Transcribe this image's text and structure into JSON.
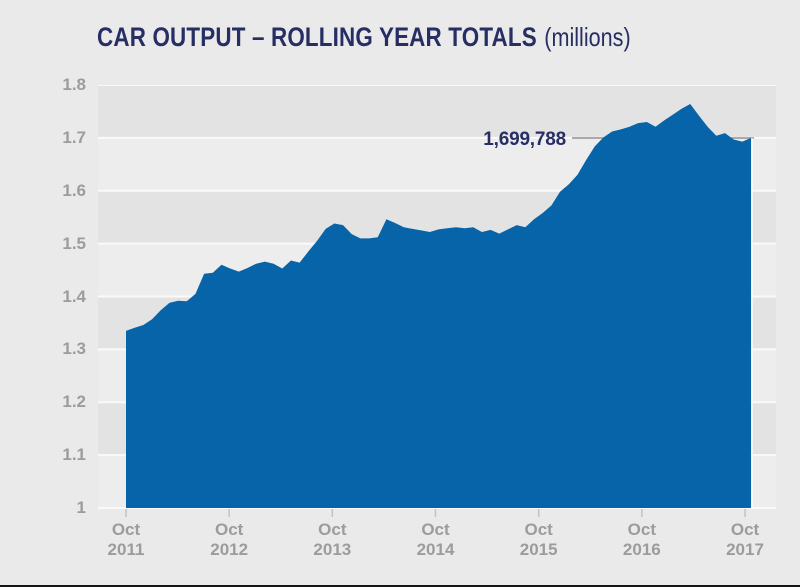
{
  "title": {
    "main": "CAR OUTPUT – ROLLING YEAR TOTALS",
    "suffix": "(millions)"
  },
  "colors": {
    "page_bg": "#eaeaea",
    "band_dark": "#e3e3e3",
    "band_light": "#ededed",
    "gridline": "#fafafa",
    "area_fill": "#0764a8",
    "axis_text": "#9c9c9c",
    "tick_mark": "#c2c2c2",
    "callout_line": "#8f8f8f",
    "title_navy": "#262e63"
  },
  "chart_data": {
    "type": "area",
    "title": "CAR OUTPUT – ROLLING YEAR TOTALS",
    "units": "millions",
    "interval": "monthly rolling year totals, Oct 2011 – Oct 2017",
    "ylim": [
      1.0,
      1.8
    ],
    "grid": "banded background, horizontal gridlines every 0.1",
    "legend": "none",
    "y_tick_labels": [
      "1.8",
      "1.7",
      "1.6",
      "1.5",
      "1.4",
      "1.3",
      "1.2",
      "1.1",
      "1"
    ],
    "x_tick_labels": [
      {
        "line1": "Oct",
        "line2": "2011"
      },
      {
        "line1": "Oct",
        "line2": "2012"
      },
      {
        "line1": "Oct",
        "line2": "2013"
      },
      {
        "line1": "Oct",
        "line2": "2014"
      },
      {
        "line1": "Oct",
        "line2": "2015"
      },
      {
        "line1": "Oct",
        "line2": "2016"
      },
      {
        "line1": "Oct",
        "line2": "2017"
      }
    ],
    "series": [
      {
        "name": "Car output rolling year total (millions)",
        "values": [
          1.335,
          1.341,
          1.346,
          1.357,
          1.374,
          1.388,
          1.392,
          1.391,
          1.405,
          1.443,
          1.445,
          1.46,
          1.453,
          1.447,
          1.454,
          1.462,
          1.466,
          1.462,
          1.453,
          1.468,
          1.464,
          1.485,
          1.505,
          1.528,
          1.538,
          1.535,
          1.518,
          1.51,
          1.51,
          1.512,
          1.546,
          1.539,
          1.531,
          1.528,
          1.525,
          1.522,
          1.527,
          1.529,
          1.531,
          1.529,
          1.531,
          1.522,
          1.526,
          1.519,
          1.527,
          1.535,
          1.531,
          1.546,
          1.558,
          1.572,
          1.598,
          1.612,
          1.63,
          1.658,
          1.684,
          1.701,
          1.712,
          1.716,
          1.721,
          1.728,
          1.73,
          1.721,
          1.733,
          1.744,
          1.755,
          1.764,
          1.742,
          1.721,
          1.704,
          1.709,
          1.697,
          1.693,
          1.7
        ]
      }
    ],
    "annotation": {
      "text": "1,699,788",
      "value_millions": 1.699788,
      "points_to": "Oct 2017 (final value)"
    }
  }
}
